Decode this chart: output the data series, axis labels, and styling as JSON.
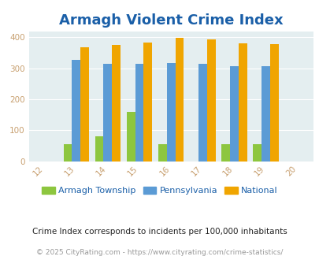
{
  "title": "Armagh Violent Crime Index",
  "title_color": "#1a5fa8",
  "title_fontsize": 13,
  "years": [
    2012,
    2013,
    2014,
    2015,
    2016,
    2017,
    2018,
    2019,
    2020
  ],
  "data_years": [
    2013,
    2014,
    2015,
    2016,
    2017,
    2018,
    2019
  ],
  "armagh": [
    55,
    80,
    160,
    55,
    0,
    55,
    55
  ],
  "pennsylvania": [
    328,
    314,
    314,
    317,
    315,
    306,
    306
  ],
  "national": [
    369,
    376,
    384,
    398,
    394,
    381,
    378
  ],
  "color_armagh": "#8dc63f",
  "color_pennsylvania": "#5b9bd5",
  "color_national": "#f0a500",
  "background_color": "#e4eef0",
  "bar_width": 0.27,
  "xlim": [
    2011.5,
    2020.5
  ],
  "ylim": [
    0,
    420
  ],
  "yticks": [
    0,
    100,
    200,
    300,
    400
  ],
  "legend_labels": [
    "Armagh Township",
    "Pennsylvania",
    "National"
  ],
  "footnote1": "Crime Index corresponds to incidents per 100,000 inhabitants",
  "footnote2": "© 2025 CityRating.com - https://www.cityrating.com/crime-statistics/",
  "footnote_color1": "#222222",
  "footnote_color2": "#999999",
  "tick_color": "#c8a070",
  "grid_color": "#ffffff"
}
